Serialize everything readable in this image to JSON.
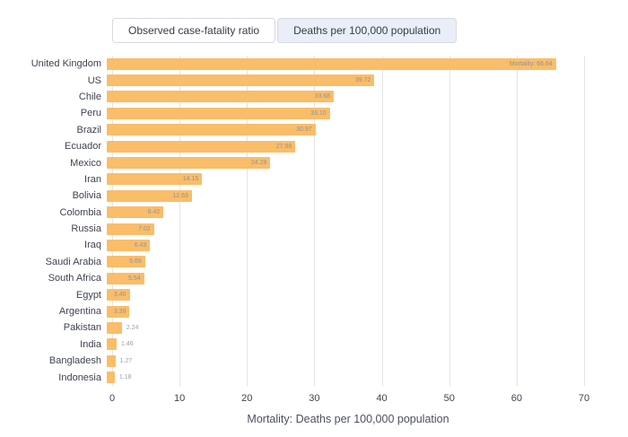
{
  "toggle": {
    "options": [
      {
        "label": "Observed case-fatality ratio",
        "selected": false
      },
      {
        "label": "Deaths per 100,000 population",
        "selected": true
      }
    ]
  },
  "chart_data": {
    "type": "bar",
    "orientation": "horizontal",
    "title": "",
    "xlabel": "Mortality: Deaths per 100,000 population",
    "ylabel": "",
    "xlim": [
      0,
      70
    ],
    "x_ticks": [
      0,
      10,
      20,
      30,
      40,
      50,
      60,
      70
    ],
    "grid": true,
    "bar_color": "#FABD69",
    "categories": [
      "United Kingdom",
      "US",
      "Chile",
      "Peru",
      "Brazil",
      "Ecuador",
      "Mexico",
      "Iran",
      "Bolivia",
      "Colombia",
      "Russia",
      "Iraq",
      "Saudi Arabia",
      "South Africa",
      "Egypt",
      "Argentina",
      "Pakistan",
      "India",
      "Bangladesh",
      "Indonesia"
    ],
    "values": [
      66.64,
      39.72,
      33.68,
      33.1,
      30.97,
      27.98,
      24.28,
      14.15,
      12.63,
      8.42,
      7.02,
      6.43,
      5.69,
      5.54,
      3.4,
      3.39,
      2.24,
      1.46,
      1.27,
      1.18
    ],
    "bar_labels": [
      "Mortality: 66.64",
      "39.72",
      "33.68",
      "33.10",
      "30.97",
      "27.98",
      "24.28",
      "14.15",
      "12.63",
      "8.42",
      "7.02",
      "6.43",
      "5.69",
      "5.54",
      "3.40",
      "3.39",
      "2.24",
      "1.46",
      "1.27",
      "1.18"
    ]
  }
}
